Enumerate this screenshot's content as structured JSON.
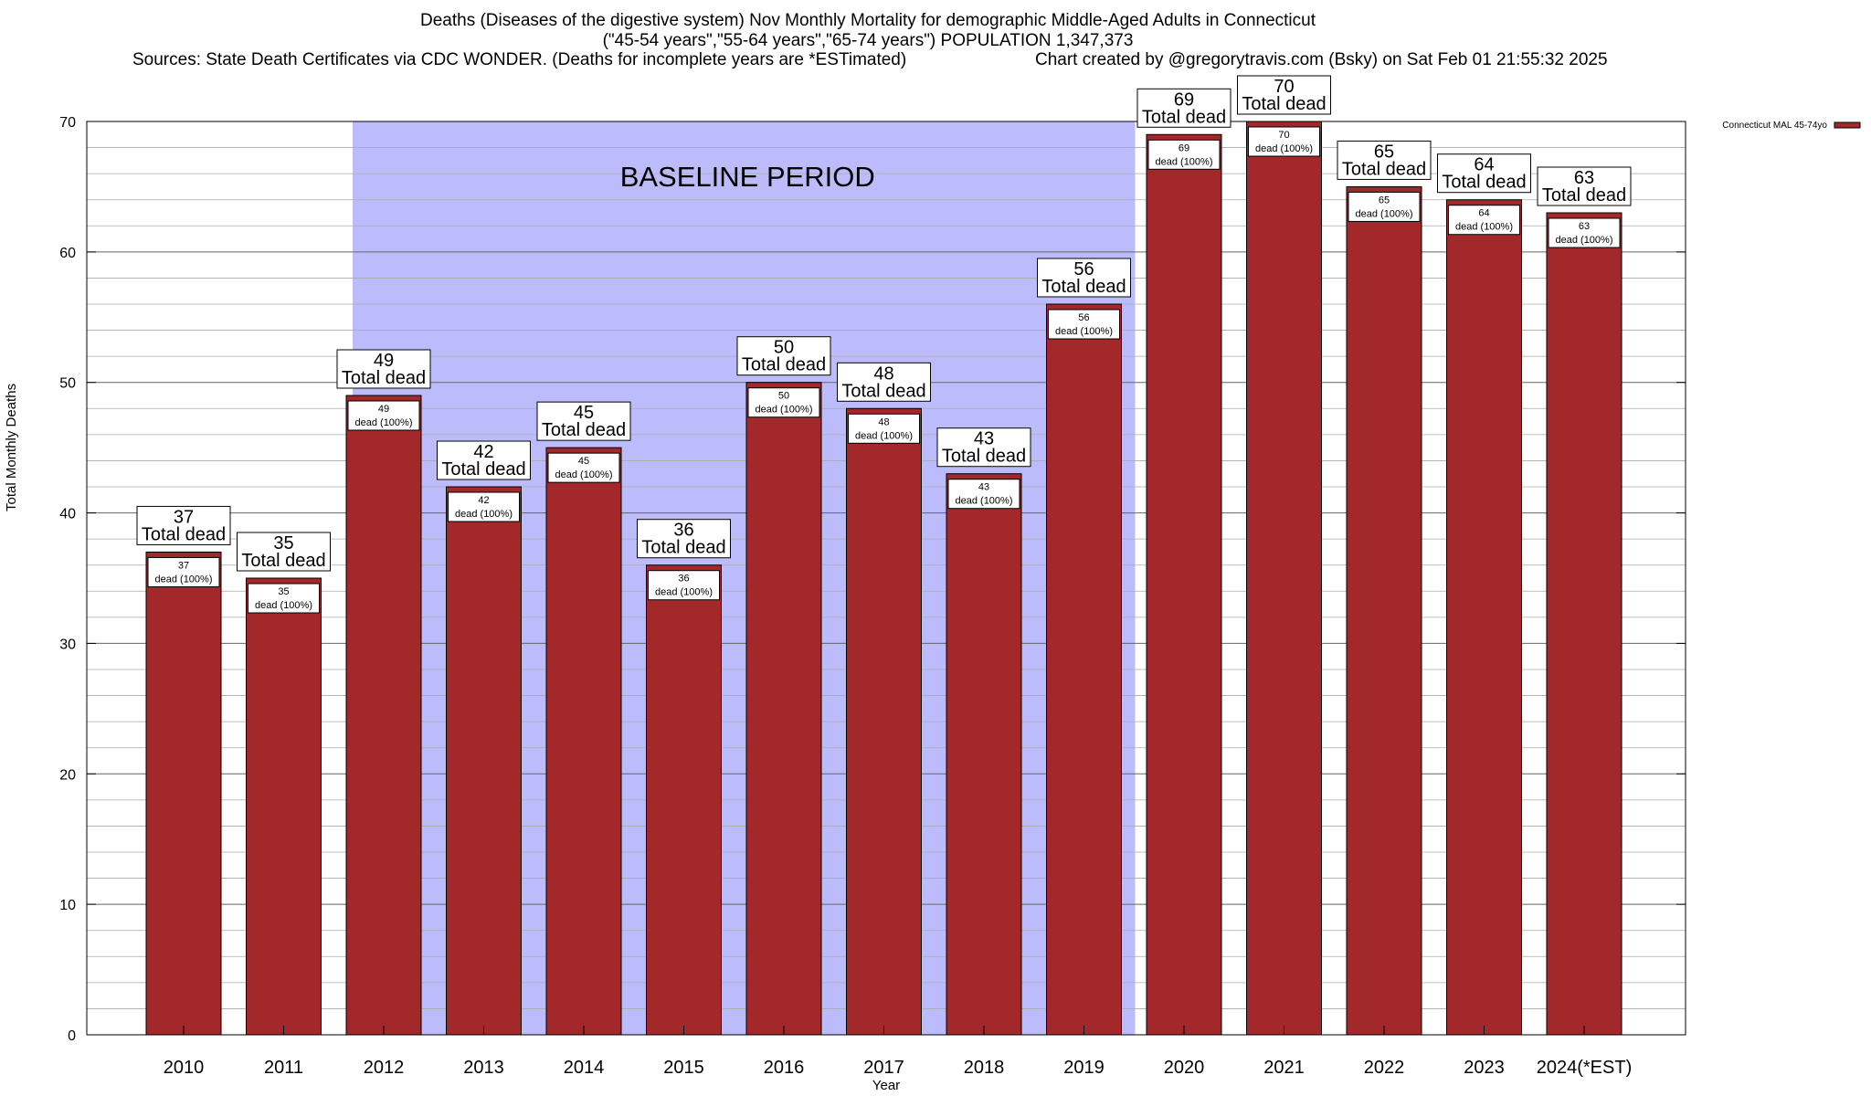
{
  "colors": {
    "bar": "#a3282a",
    "baseline_band": "#bcbcfd",
    "background": "#ffffff",
    "grid": "#777777"
  },
  "header": {
    "title_line1": "Deaths (Diseases of the digestive system) Nov Monthly Mortality for demographic Middle-Aged Adults in Connecticut",
    "title_line2": "(\"45-54 years\",\"55-64 years\",\"65-74 years\") POPULATION 1,347,373",
    "sources": "Sources: State Death Certificates via CDC WONDER. (Deaths for incomplete years are *ESTimated)",
    "credit": "Chart created by @gregorytravis.com (Bsky) on Sat Feb 01 21:55:32 2025"
  },
  "chart_data": {
    "type": "bar",
    "xlabel": "Year",
    "ylabel": "Total Monthly Deaths",
    "ylim": [
      0,
      70
    ],
    "yticks": [
      0,
      10,
      20,
      30,
      40,
      50,
      60,
      70
    ],
    "grid": true,
    "legend": {
      "placement": "top-right",
      "entries": [
        "Connecticut MAL 45-74yo"
      ]
    },
    "categories": [
      "2010",
      "2011",
      "2012",
      "2013",
      "2014",
      "2015",
      "2016",
      "2017",
      "2018",
      "2019",
      "2020",
      "2021",
      "2022",
      "2023",
      "2024(*EST)"
    ],
    "series": [
      {
        "name": "Connecticut MAL 45-74yo",
        "values": [
          37,
          35,
          49,
          42,
          45,
          36,
          50,
          48,
          43,
          56,
          69,
          70,
          65,
          64,
          63
        ]
      }
    ],
    "total_label": "Total dead",
    "inner_label": "dead (100%)",
    "baseline": {
      "label": "BASELINE PERIOD",
      "from": "2012",
      "to": "2019"
    }
  }
}
